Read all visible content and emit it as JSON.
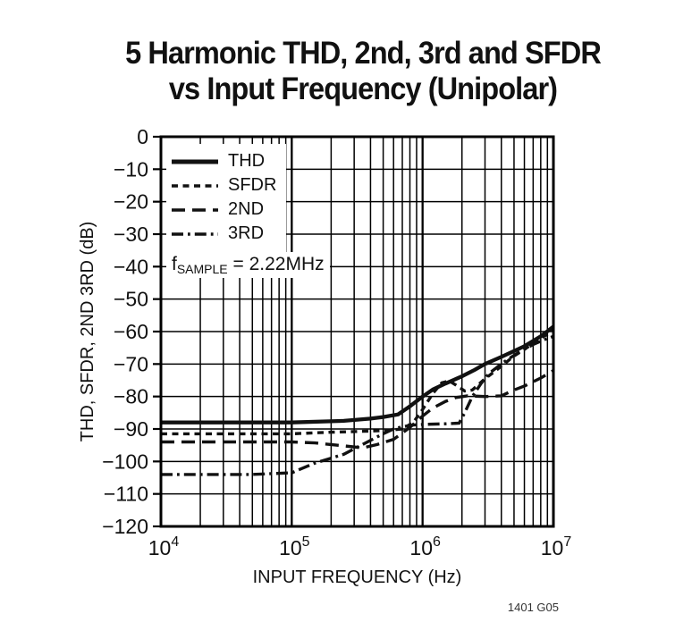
{
  "title": {
    "line1": "5 Harmonic THD, 2nd, 3rd and SFDR",
    "line2": "vs Input Frequency (Unipolar)"
  },
  "caption": "1401 G05",
  "colors": {
    "ink": "#111111",
    "grid": "#000000",
    "background": "#ffffff"
  },
  "chart_data": {
    "type": "line",
    "title": "5 Harmonic THD, 2nd, 3rd and SFDR vs Input Frequency (Unipolar)",
    "xlabel": "INPUT FREQUENCY (Hz)",
    "ylabel": "THD, SFDR, 2ND 3RD (dB)",
    "x_scale": "log",
    "xlim": [
      10000,
      10000000
    ],
    "ylim": [
      -120,
      0
    ],
    "grid": "on",
    "legend_position": "top-left-inside",
    "x_tick_exponents": [
      4,
      5,
      6,
      7
    ],
    "y_tick_labels": [
      "0",
      "−10",
      "−20",
      "−30",
      "−40",
      "−50",
      "−60",
      "−70",
      "−80",
      "−90",
      "−100",
      "−110",
      "−120"
    ],
    "annotation": {
      "name": "f",
      "sub": "SAMPLE",
      "rest": " = 2.22MHz"
    },
    "series": [
      {
        "name": "THD",
        "style": "solid",
        "points": [
          [
            10000,
            -88
          ],
          [
            30000,
            -88
          ],
          [
            100000,
            -88
          ],
          [
            250000,
            -87.5
          ],
          [
            400000,
            -86.8
          ],
          [
            500000,
            -86.3
          ],
          [
            650000,
            -85.5
          ],
          [
            800000,
            -83
          ],
          [
            1000000,
            -80
          ],
          [
            1200000,
            -77.8
          ],
          [
            1500000,
            -76
          ],
          [
            2000000,
            -73.8
          ],
          [
            2500000,
            -71.8
          ],
          [
            3000000,
            -70
          ],
          [
            4000000,
            -67.8
          ],
          [
            5000000,
            -66
          ],
          [
            6000000,
            -64.5
          ],
          [
            8000000,
            -61.5
          ],
          [
            10000000,
            -58.5
          ]
        ]
      },
      {
        "name": "SFDR",
        "style": "dotted",
        "points": [
          [
            10000,
            -91.5
          ],
          [
            50000,
            -91.5
          ],
          [
            100000,
            -91.5
          ],
          [
            200000,
            -91
          ],
          [
            300000,
            -90.8
          ],
          [
            500000,
            -90.5
          ],
          [
            700000,
            -90
          ],
          [
            850000,
            -88
          ],
          [
            1000000,
            -84
          ],
          [
            1200000,
            -79
          ],
          [
            1400000,
            -75.8
          ],
          [
            1600000,
            -75.2
          ],
          [
            1800000,
            -76.5
          ],
          [
            2100000,
            -78.3
          ],
          [
            2400000,
            -78
          ],
          [
            3000000,
            -74.5
          ],
          [
            3500000,
            -72.5
          ],
          [
            4500000,
            -69
          ],
          [
            5000000,
            -67.5
          ],
          [
            6000000,
            -65.5
          ],
          [
            8000000,
            -62
          ],
          [
            10000000,
            -59.8
          ]
        ]
      },
      {
        "name": "2ND",
        "style": "dashed",
        "points": [
          [
            10000,
            -94
          ],
          [
            50000,
            -94
          ],
          [
            100000,
            -94
          ],
          [
            150000,
            -94.3
          ],
          [
            250000,
            -95.2
          ],
          [
            350000,
            -95.8
          ],
          [
            450000,
            -94.8
          ],
          [
            600000,
            -93.2
          ],
          [
            800000,
            -89.5
          ],
          [
            1000000,
            -86
          ],
          [
            1200000,
            -83.5
          ],
          [
            1500000,
            -81.5
          ],
          [
            1800000,
            -80.3
          ],
          [
            2200000,
            -79.8
          ],
          [
            3000000,
            -80
          ],
          [
            4000000,
            -79.8
          ],
          [
            5000000,
            -78
          ],
          [
            6000000,
            -76.8
          ],
          [
            8000000,
            -74.3
          ],
          [
            10000000,
            -72
          ]
        ]
      },
      {
        "name": "3RD",
        "style": "dashdot",
        "points": [
          [
            10000,
            -104
          ],
          [
            50000,
            -104
          ],
          [
            100000,
            -103.5
          ],
          [
            150000,
            -100.5
          ],
          [
            250000,
            -97.8
          ],
          [
            400000,
            -93.5
          ],
          [
            500000,
            -91.5
          ],
          [
            600000,
            -90
          ],
          [
            700000,
            -89.3
          ],
          [
            850000,
            -88.8
          ],
          [
            1000000,
            -88.6
          ],
          [
            1500000,
            -88.4
          ],
          [
            1900000,
            -88.2
          ],
          [
            2100000,
            -85
          ],
          [
            2400000,
            -80
          ],
          [
            2800000,
            -76
          ],
          [
            3200000,
            -73
          ],
          [
            4000000,
            -70
          ],
          [
            4500000,
            -68.5
          ],
          [
            5500000,
            -66.3
          ],
          [
            7000000,
            -64
          ],
          [
            8500000,
            -62.5
          ],
          [
            10000000,
            -61.5
          ]
        ]
      }
    ]
  }
}
